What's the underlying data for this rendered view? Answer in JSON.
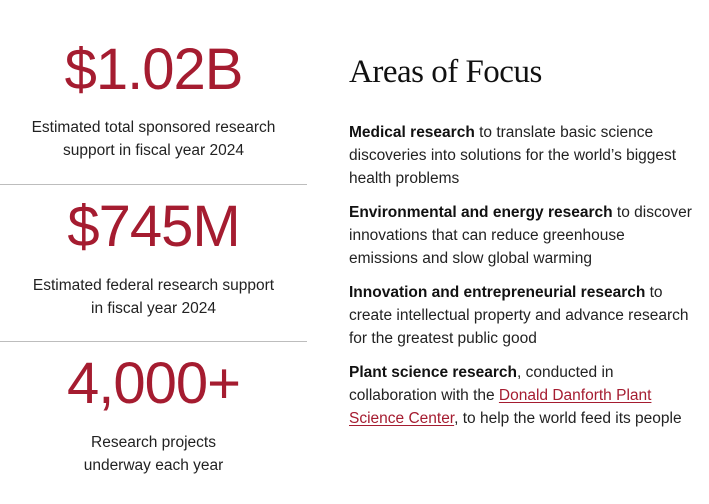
{
  "stats": [
    {
      "value": "$1.02B",
      "desc_line1": "Estimated total sponsored research",
      "desc_line2": "support in fiscal year 2024"
    },
    {
      "value": "$745M",
      "desc_line1": "Estimated federal research support",
      "desc_line2": "in fiscal year 2024"
    },
    {
      "value": "4,000+",
      "desc_line1": "Research projects",
      "desc_line2": "underway each year"
    }
  ],
  "focus": {
    "title": "Areas of Focus",
    "items": [
      {
        "bold": "Medical research",
        "text": " to translate basic science discoveries into solutions for the world’s biggest health problems"
      },
      {
        "bold": "Environmental and energy research",
        "text": " to discover innovations that can reduce greenhouse emissions and slow global warming"
      },
      {
        "bold": "Innovation and entrepreneurial research",
        "text": " to create intellectual property and advance research for the greatest public good"
      },
      {
        "bold": "Plant science research",
        "text_before": ", conducted in collaboration with the ",
        "link": "Donald Danforth Plant Science Center",
        "text_after": ", to help the world feed its people"
      }
    ]
  },
  "colors": {
    "accent": "#a51c30",
    "text": "#222222",
    "divider": "#bdbdbd"
  }
}
